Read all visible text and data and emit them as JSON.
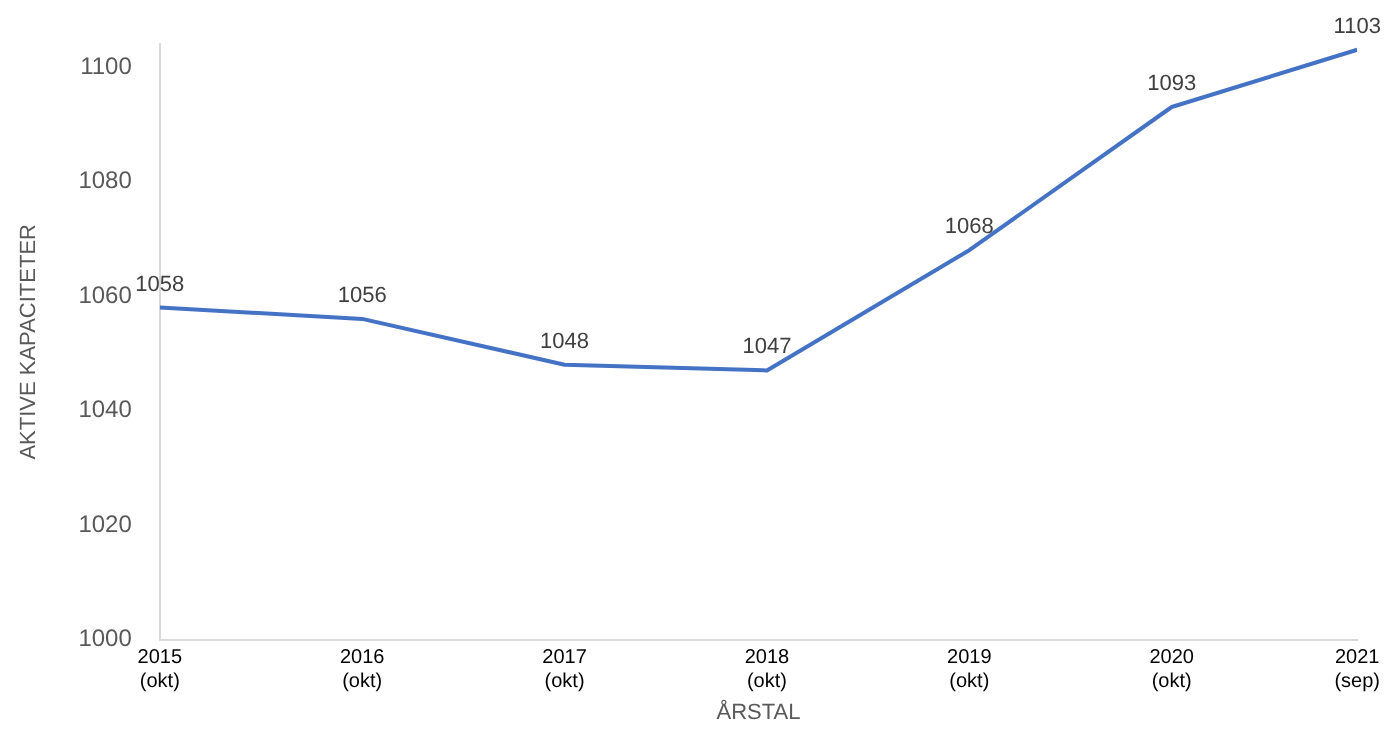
{
  "chart_data": {
    "type": "line",
    "xlabel": "ÅRSTAL",
    "ylabel": "AKTIVE KAPACITETER",
    "x": [
      "2015-10",
      "2016-10",
      "2017-10",
      "2018-10",
      "2019-10",
      "2020-10",
      "2021-09"
    ],
    "series": [
      {
        "color": "#4472c4",
        "values": [
          1058,
          1056,
          1048,
          1047,
          1068,
          1093,
          1103
        ]
      }
    ],
    "xlim": [
      "2015-10",
      "2021-09"
    ],
    "xticks": [
      {
        "value": "2015-10",
        "label": "2015 (okt)"
      },
      {
        "value": "2016-10",
        "label": "2016 (okt)"
      },
      {
        "value": "2017-10",
        "label": "2017 (okt)"
      },
      {
        "value": "2018-10",
        "label": "2018 (okt)"
      },
      {
        "value": "2019-10",
        "label": "2019 (okt)"
      },
      {
        "value": "2020-10",
        "label": "2020 (okt)"
      },
      {
        "value": "2021-09",
        "label": "2021 (sep)"
      }
    ],
    "ylim": [
      1000,
      1104
    ],
    "yticks": [
      1000,
      1020,
      1040,
      1060,
      1080,
      1100
    ],
    "grid": false,
    "legend": false,
    "marker": "none",
    "line_style": "solid",
    "data_labels": true
  }
}
